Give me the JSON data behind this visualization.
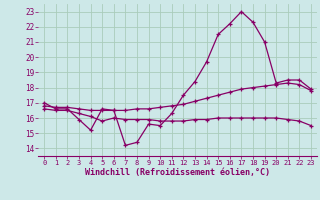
{
  "xlabel": "Windchill (Refroidissement éolien,°C)",
  "bg_color": "#cde8e8",
  "grid_color": "#aaccbb",
  "line_color": "#880066",
  "xlim": [
    -0.5,
    23.5
  ],
  "ylim": [
    13.5,
    23.5
  ],
  "yticks": [
    14,
    15,
    16,
    17,
    18,
    19,
    20,
    21,
    22,
    23
  ],
  "xticks": [
    0,
    1,
    2,
    3,
    4,
    5,
    6,
    7,
    8,
    9,
    10,
    11,
    12,
    13,
    14,
    15,
    16,
    17,
    18,
    19,
    20,
    21,
    22,
    23
  ],
  "series1_x": [
    0,
    1,
    2,
    3,
    4,
    5,
    6,
    7,
    8,
    9,
    10,
    11,
    12,
    13,
    14,
    15,
    16,
    17,
    18,
    19,
    20,
    21,
    22,
    23
  ],
  "series1_y": [
    17.0,
    16.6,
    16.6,
    15.9,
    15.2,
    16.6,
    16.5,
    14.2,
    14.4,
    15.6,
    15.5,
    16.3,
    17.5,
    18.4,
    19.7,
    21.5,
    22.2,
    23.0,
    22.3,
    21.0,
    18.3,
    18.5,
    18.5,
    17.9
  ],
  "series2_x": [
    0,
    1,
    2,
    3,
    4,
    5,
    6,
    7,
    8,
    9,
    10,
    11,
    12,
    13,
    14,
    15,
    16,
    17,
    18,
    19,
    20,
    21,
    22,
    23
  ],
  "series2_y": [
    16.6,
    16.5,
    16.5,
    16.3,
    16.1,
    15.8,
    16.0,
    15.9,
    15.9,
    15.9,
    15.8,
    15.8,
    15.8,
    15.9,
    15.9,
    16.0,
    16.0,
    16.0,
    16.0,
    16.0,
    16.0,
    15.9,
    15.8,
    15.5
  ],
  "series3_x": [
    0,
    1,
    2,
    3,
    4,
    5,
    6,
    7,
    8,
    9,
    10,
    11,
    12,
    13,
    14,
    15,
    16,
    17,
    18,
    19,
    20,
    21,
    22,
    23
  ],
  "series3_y": [
    16.8,
    16.7,
    16.7,
    16.6,
    16.5,
    16.5,
    16.5,
    16.5,
    16.6,
    16.6,
    16.7,
    16.8,
    16.9,
    17.1,
    17.3,
    17.5,
    17.7,
    17.9,
    18.0,
    18.1,
    18.2,
    18.3,
    18.2,
    17.8
  ]
}
